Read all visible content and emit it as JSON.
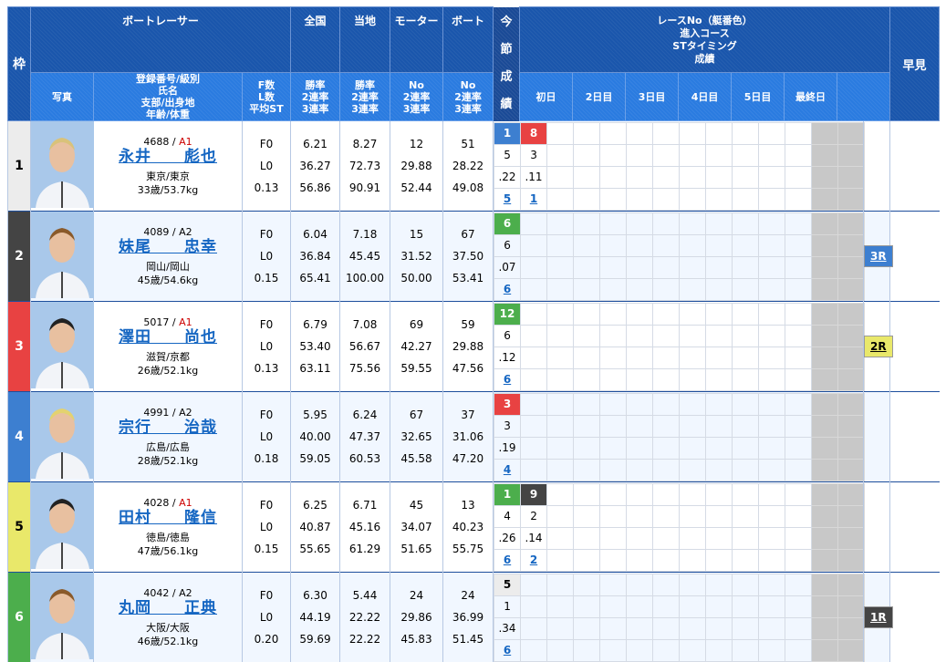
{
  "header": {
    "frame": "枠",
    "racer": "ボートレーサー",
    "zenkoku": "全国",
    "tochi": "当地",
    "motor": "モーター",
    "boat": "ボート",
    "photo": "写真",
    "info_lines": [
      "登録番号/級別",
      "氏名",
      "支部/出身地",
      "年齢/体重"
    ],
    "fl_lines": [
      "F数",
      "L数",
      "平均ST"
    ],
    "zen_lines": [
      "勝率",
      "2連率",
      "3連率"
    ],
    "toc_lines": [
      "勝率",
      "2連率",
      "3連率"
    ],
    "mot_lines": [
      "No",
      "2連率",
      "3連率"
    ],
    "boa_lines": [
      "No",
      "2連率",
      "3連率"
    ],
    "race_lines": [
      "レースNo（艇番色）",
      "進入コース",
      "STタイミング",
      "成績"
    ],
    "days": [
      "初日",
      "2日目",
      "3日目",
      "4日目",
      "5日目",
      "最終日",
      ""
    ],
    "hayami": "早見",
    "konsetsu": [
      "今",
      "節",
      "成",
      "績"
    ]
  },
  "colors": {
    "1": "#ececec",
    "2": "#444444",
    "3": "#e84242",
    "4": "#3d7fd0",
    "5": "#e9e86a",
    "6": "#4cae4c"
  },
  "racers": [
    {
      "frame": "1",
      "reg": "4688",
      "grade": "A1",
      "name": "永井　　彪也",
      "branch": "東京/東京",
      "age": "33歳/53.7kg",
      "f": "F0",
      "l": "L0",
      "st": "0.13",
      "zen": [
        "6.21",
        "36.27",
        "56.86"
      ],
      "toc": [
        "8.27",
        "72.73",
        "90.91"
      ],
      "mot": [
        "12",
        "29.88",
        "52.44"
      ],
      "boa": [
        "51",
        "28.22",
        "49.08"
      ],
      "races": [
        {
          "no": "1",
          "color": "4",
          "course": "5",
          "st": ".22",
          "result": "5"
        },
        {
          "no": "8",
          "color": "3",
          "course": "3",
          "st": ".11",
          "result": "1"
        }
      ],
      "hayami": ""
    },
    {
      "frame": "2",
      "reg": "4089",
      "grade": "A2",
      "name": "妹尾　　忠幸",
      "branch": "岡山/岡山",
      "age": "45歳/54.6kg",
      "f": "F0",
      "l": "L0",
      "st": "0.15",
      "zen": [
        "6.04",
        "36.84",
        "65.41"
      ],
      "toc": [
        "7.18",
        "45.45",
        "100.00"
      ],
      "mot": [
        "15",
        "31.52",
        "50.00"
      ],
      "boa": [
        "67",
        "37.50",
        "53.41"
      ],
      "races": [
        {
          "no": "6",
          "color": "6",
          "course": "6",
          "st": ".07",
          "result": "6"
        }
      ],
      "hayami": "3R",
      "hayami_color": "4"
    },
    {
      "frame": "3",
      "reg": "5017",
      "grade": "A1",
      "name": "澤田　　尚也",
      "branch": "滋賀/京都",
      "age": "26歳/52.1kg",
      "f": "F0",
      "l": "L0",
      "st": "0.13",
      "zen": [
        "6.79",
        "53.40",
        "63.11"
      ],
      "toc": [
        "7.08",
        "56.67",
        "75.56"
      ],
      "mot": [
        "69",
        "42.27",
        "59.55"
      ],
      "boa": [
        "59",
        "29.88",
        "47.56"
      ],
      "races": [
        {
          "no": "12",
          "color": "6",
          "course": "6",
          "st": ".12",
          "result": "6"
        }
      ],
      "hayami": "2R",
      "hayami_color": "5"
    },
    {
      "frame": "4",
      "reg": "4991",
      "grade": "A2",
      "name": "宗行　　治哉",
      "branch": "広島/広島",
      "age": "28歳/52.1kg",
      "f": "F0",
      "l": "L0",
      "st": "0.18",
      "zen": [
        "5.95",
        "40.00",
        "59.05"
      ],
      "toc": [
        "6.24",
        "47.37",
        "60.53"
      ],
      "mot": [
        "67",
        "32.65",
        "45.58"
      ],
      "boa": [
        "37",
        "31.06",
        "47.20"
      ],
      "races": [
        {
          "no": "3",
          "color": "3",
          "course": "3",
          "st": ".19",
          "result": "4"
        }
      ],
      "hayami": ""
    },
    {
      "frame": "5",
      "reg": "4028",
      "grade": "A1",
      "name": "田村　　隆信",
      "branch": "徳島/徳島",
      "age": "47歳/56.1kg",
      "f": "F0",
      "l": "L0",
      "st": "0.15",
      "zen": [
        "6.25",
        "40.87",
        "55.65"
      ],
      "toc": [
        "6.71",
        "45.16",
        "61.29"
      ],
      "mot": [
        "45",
        "34.07",
        "51.65"
      ],
      "boa": [
        "13",
        "40.23",
        "55.75"
      ],
      "races": [
        {
          "no": "1",
          "color": "6",
          "course": "4",
          "st": ".26",
          "result": "6"
        },
        {
          "no": "9",
          "color": "2",
          "course": "2",
          "st": ".14",
          "result": "2"
        }
      ],
      "hayami": ""
    },
    {
      "frame": "6",
      "reg": "4042",
      "grade": "A2",
      "name": "丸岡　　正典",
      "branch": "大阪/大阪",
      "age": "46歳/52.1kg",
      "f": "F0",
      "l": "L0",
      "st": "0.20",
      "zen": [
        "6.30",
        "44.19",
        "59.69"
      ],
      "toc": [
        "5.44",
        "22.22",
        "22.22"
      ],
      "mot": [
        "24",
        "29.86",
        "45.83"
      ],
      "boa": [
        "24",
        "36.99",
        "51.45"
      ],
      "races": [
        {
          "no": "5",
          "color": "1",
          "course": "1",
          "st": ".34",
          "result": "6"
        }
      ],
      "hayami": "1R",
      "hayami_color": "2"
    }
  ]
}
